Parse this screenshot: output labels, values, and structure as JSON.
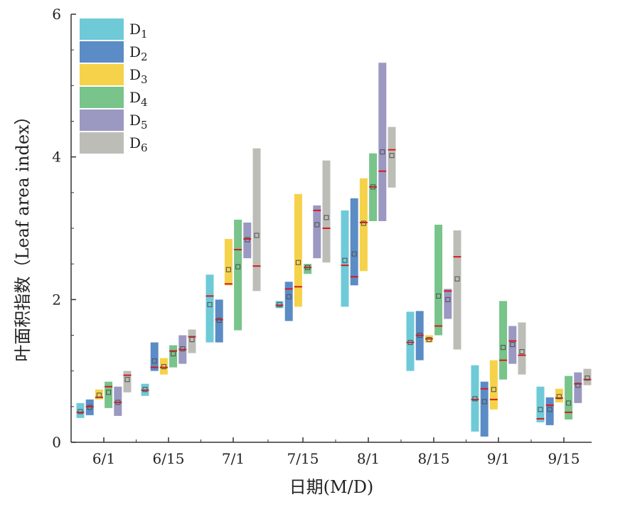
{
  "chart_data": {
    "type": "box",
    "xlabel": "日期(M/D)",
    "ylabel": "叶面积指数（Leaf area index）",
    "categories": [
      "6/1",
      "6/15",
      "7/1",
      "7/15",
      "8/1",
      "8/15",
      "9/1",
      "9/15"
    ],
    "y_ticks": [
      "0",
      "2",
      "4",
      "6"
    ],
    "ylim": [
      0,
      6
    ],
    "legend_position": "top-left",
    "series": [
      {
        "name": "D",
        "sub": "1",
        "color": "#6fcad8",
        "boxes": [
          {
            "low": 0.34,
            "high": 0.55,
            "median": 0.42,
            "mean": 0.43
          },
          {
            "low": 0.65,
            "high": 0.82,
            "median": 0.73,
            "mean": 0.74
          },
          {
            "low": 1.4,
            "high": 2.35,
            "median": 2.05,
            "mean": 1.93
          },
          {
            "low": 1.88,
            "high": 1.98,
            "median": 1.92,
            "mean": 1.93
          },
          {
            "low": 1.9,
            "high": 3.25,
            "median": 2.48,
            "mean": 2.55
          },
          {
            "low": 1.0,
            "high": 1.83,
            "median": 1.4,
            "mean": 1.4
          },
          {
            "low": 0.15,
            "high": 1.08,
            "median": 0.6,
            "mean": 0.61
          },
          {
            "low": 0.28,
            "high": 0.78,
            "median": 0.33,
            "mean": 0.46
          }
        ]
      },
      {
        "name": "D",
        "sub": "2",
        "color": "#5b8cc5",
        "boxes": [
          {
            "low": 0.38,
            "high": 0.6,
            "median": 0.5,
            "mean": 0.49
          },
          {
            "low": 1.0,
            "high": 1.4,
            "median": 1.05,
            "mean": 1.14
          },
          {
            "low": 1.4,
            "high": 2.0,
            "median": 1.72,
            "mean": 1.71
          },
          {
            "low": 1.7,
            "high": 2.25,
            "median": 2.15,
            "mean": 2.04
          },
          {
            "low": 2.2,
            "high": 3.42,
            "median": 2.32,
            "mean": 2.64
          },
          {
            "low": 1.15,
            "high": 1.84,
            "median": 1.5,
            "mean": 1.5
          },
          {
            "low": 0.08,
            "high": 0.85,
            "median": 0.75,
            "mean": 0.57
          },
          {
            "low": 0.24,
            "high": 0.63,
            "median": 0.52,
            "mean": 0.46
          }
        ]
      },
      {
        "name": "D",
        "sub": "3",
        "color": "#f6d24a",
        "boxes": [
          {
            "low": 0.6,
            "high": 0.74,
            "median": 0.63,
            "mean": 0.66
          },
          {
            "low": 0.95,
            "high": 1.18,
            "median": 1.05,
            "mean": 1.06
          },
          {
            "low": 2.2,
            "high": 2.85,
            "median": 2.22,
            "mean": 2.42
          },
          {
            "low": 1.9,
            "high": 3.48,
            "median": 2.18,
            "mean": 2.52
          },
          {
            "low": 2.4,
            "high": 3.7,
            "median": 3.08,
            "mean": 3.07
          },
          {
            "low": 1.4,
            "high": 1.5,
            "median": 1.45,
            "mean": 1.44
          },
          {
            "low": 0.46,
            "high": 1.15,
            "median": 0.6,
            "mean": 0.74
          },
          {
            "low": 0.56,
            "high": 0.75,
            "median": 0.62,
            "mean": 0.64
          }
        ]
      },
      {
        "name": "D",
        "sub": "4",
        "color": "#78c48a",
        "boxes": [
          {
            "low": 0.48,
            "high": 0.85,
            "median": 0.78,
            "mean": 0.7
          },
          {
            "low": 1.05,
            "high": 1.36,
            "median": 1.28,
            "mean": 1.24
          },
          {
            "low": 1.57,
            "high": 3.12,
            "median": 2.7,
            "mean": 2.46
          },
          {
            "low": 2.36,
            "high": 2.5,
            "median": 2.45,
            "mean": 2.45
          },
          {
            "low": 3.1,
            "high": 4.05,
            "median": 3.58,
            "mean": 3.58
          },
          {
            "low": 1.5,
            "high": 3.05,
            "median": 1.63,
            "mean": 2.05
          },
          {
            "low": 0.88,
            "high": 1.98,
            "median": 1.15,
            "mean": 1.33
          },
          {
            "low": 0.32,
            "high": 0.93,
            "median": 0.42,
            "mean": 0.55
          }
        ]
      },
      {
        "name": "D",
        "sub": "5",
        "color": "#9b98c2",
        "boxes": [
          {
            "low": 0.37,
            "high": 0.78,
            "median": 0.56,
            "mean": 0.56
          },
          {
            "low": 1.1,
            "high": 1.5,
            "median": 1.3,
            "mean": 1.31
          },
          {
            "low": 2.58,
            "high": 3.08,
            "median": 2.85,
            "mean": 2.84
          },
          {
            "low": 2.58,
            "high": 3.32,
            "median": 3.25,
            "mean": 3.05
          },
          {
            "low": 3.1,
            "high": 5.32,
            "median": 3.8,
            "mean": 4.07
          },
          {
            "low": 1.73,
            "high": 2.15,
            "median": 2.12,
            "mean": 2.0
          },
          {
            "low": 1.1,
            "high": 1.63,
            "median": 1.42,
            "mean": 1.37
          },
          {
            "low": 0.55,
            "high": 0.98,
            "median": 0.82,
            "mean": 0.8
          }
        ]
      },
      {
        "name": "D",
        "sub": "6",
        "color": "#bdbdb8",
        "boxes": [
          {
            "low": 0.7,
            "high": 1.0,
            "median": 0.94,
            "mean": 0.88
          },
          {
            "low": 1.25,
            "high": 1.58,
            "median": 1.48,
            "mean": 1.44
          },
          {
            "low": 2.12,
            "high": 4.12,
            "median": 2.47,
            "mean": 2.9
          },
          {
            "low": 2.52,
            "high": 3.95,
            "median": 3.0,
            "mean": 3.15
          },
          {
            "low": 3.57,
            "high": 4.42,
            "median": 4.1,
            "mean": 4.02
          },
          {
            "low": 1.3,
            "high": 2.97,
            "median": 2.6,
            "mean": 2.29
          },
          {
            "low": 0.95,
            "high": 1.68,
            "median": 1.22,
            "mean": 1.27
          },
          {
            "low": 0.8,
            "high": 1.03,
            "median": 0.88,
            "mean": 0.9
          }
        ]
      }
    ],
    "median_color": "#d7191c",
    "mean_marker_color": "#555555"
  }
}
